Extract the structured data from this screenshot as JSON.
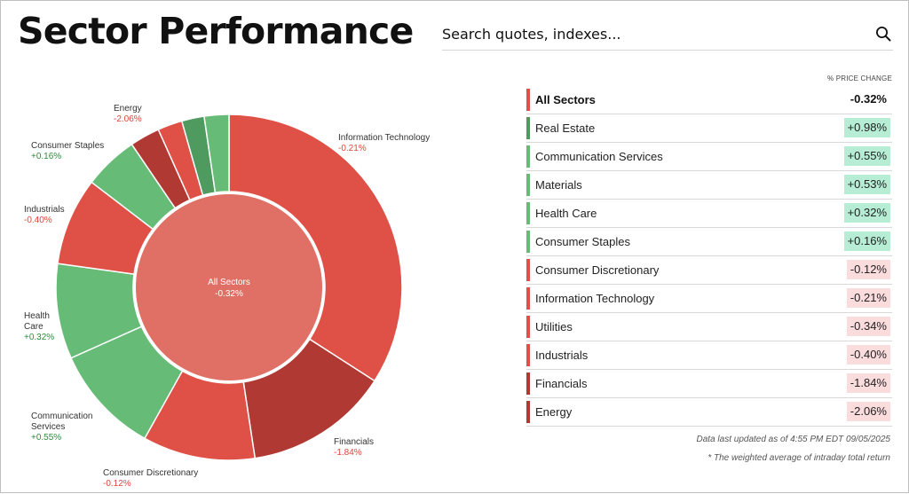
{
  "page": {
    "title": "Sector Performance",
    "search_placeholder": "Search quotes, indexes..."
  },
  "colors": {
    "negative_strong": "#df5046",
    "negative_dark": "#b03a33",
    "positive": "#66bb77",
    "positive_dark": "#4e9a5f",
    "center": "#e07066",
    "pos_badge": "#b6edd4",
    "neg_badge": "#fbdcdc",
    "pos_text": "#2e8b3c",
    "neg_text": "#e0443b"
  },
  "table": {
    "header": "% PRICE CHANGE",
    "rows": [
      {
        "name": "All Sectors",
        "value": "-0.32%",
        "bar": "#df5046",
        "badge": "none"
      },
      {
        "name": "Real Estate",
        "value": "+0.98%",
        "bar": "#4e9a5f",
        "badge": "pos"
      },
      {
        "name": "Communication Services",
        "value": "+0.55%",
        "bar": "#66bb77",
        "badge": "pos"
      },
      {
        "name": "Materials",
        "value": "+0.53%",
        "bar": "#66bb77",
        "badge": "pos"
      },
      {
        "name": "Health Care",
        "value": "+0.32%",
        "bar": "#66bb77",
        "badge": "pos"
      },
      {
        "name": "Consumer Staples",
        "value": "+0.16%",
        "bar": "#66bb77",
        "badge": "pos"
      },
      {
        "name": "Consumer Discretionary",
        "value": "-0.12%",
        "bar": "#df5046",
        "badge": "neg"
      },
      {
        "name": "Information Technology",
        "value": "-0.21%",
        "bar": "#df5046",
        "badge": "neg"
      },
      {
        "name": "Utilities",
        "value": "-0.34%",
        "bar": "#df5046",
        "badge": "neg"
      },
      {
        "name": "Industrials",
        "value": "-0.40%",
        "bar": "#df5046",
        "badge": "neg"
      },
      {
        "name": "Financials",
        "value": "-1.84%",
        "bar": "#b03a33",
        "badge": "neg"
      },
      {
        "name": "Energy",
        "value": "-2.06%",
        "bar": "#b03a33",
        "badge": "neg"
      }
    ]
  },
  "footnotes": {
    "updated": "Data last updated as of 4:55 PM EDT 09/05/2025",
    "note": "* The weighted average of intraday total return"
  },
  "chart_data": {
    "type": "pie",
    "center_label": "All Sectors",
    "center_value": "-0.32%",
    "slices": [
      {
        "name": "Information Technology",
        "value": 34.1,
        "change": "-0.21%",
        "color": "#df5046",
        "labeled": true
      },
      {
        "name": "Financials",
        "value": 13.5,
        "change": "-1.84%",
        "color": "#b03a33",
        "labeled": true
      },
      {
        "name": "Consumer Discretionary",
        "value": 10.5,
        "change": "-0.12%",
        "color": "#df5046",
        "labeled": true
      },
      {
        "name": "Communication Services",
        "value": 10.2,
        "change": "+0.55%",
        "color": "#66bb77",
        "labeled": true
      },
      {
        "name": "Health Care",
        "value": 8.9,
        "change": "+0.32%",
        "color": "#66bb77",
        "labeled": true
      },
      {
        "name": "Industrials",
        "value": 8.2,
        "change": "-0.40%",
        "color": "#df5046",
        "labeled": true
      },
      {
        "name": "Consumer Staples",
        "value": 5.1,
        "change": "+0.16%",
        "color": "#66bb77",
        "labeled": true
      },
      {
        "name": "Energy",
        "value": 2.8,
        "change": "-2.06%",
        "color": "#b03a33",
        "labeled": true
      },
      {
        "name": "Utilities",
        "value": 2.3,
        "change": "-0.34%",
        "color": "#df5046",
        "labeled": false
      },
      {
        "name": "Real Estate",
        "value": 2.1,
        "change": "+0.98%",
        "color": "#4e9a5f",
        "labeled": false
      },
      {
        "name": "Materials",
        "value": 2.3,
        "change": "+0.53%",
        "color": "#66bb77",
        "labeled": false
      }
    ]
  }
}
